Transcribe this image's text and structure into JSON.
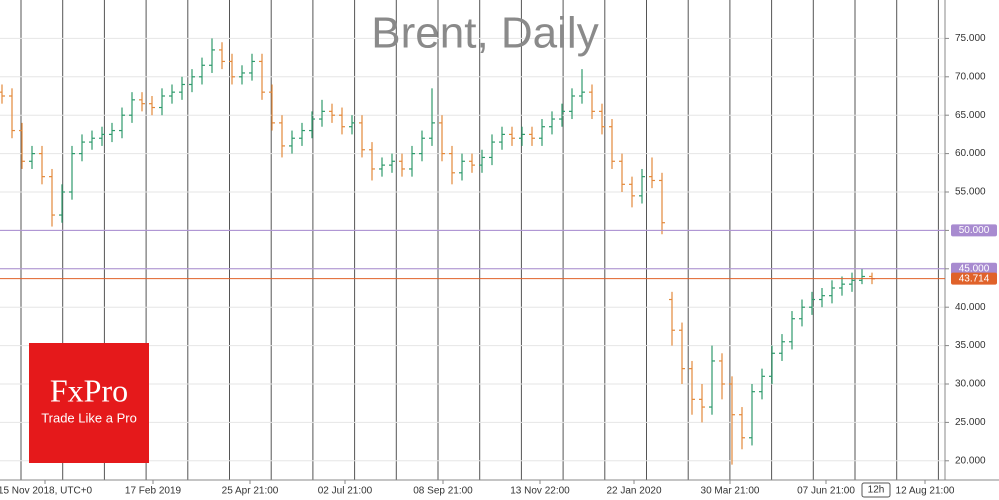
{
  "chart_data": {
    "type": "ohlc",
    "title": "Brent, Daily",
    "timeframe": "12h",
    "logo": {
      "brand": "FxPro",
      "tagline": "Trade Like a Pro"
    },
    "up_color": "#2f9a6c",
    "down_color": "#e3893a",
    "grid": true,
    "xlim": [
      -0.2,
      94.3
    ],
    "ylim": [
      17.5,
      80
    ],
    "xticks": [
      {
        "value": 4.3,
        "label": "15 Nov 2018, UTC+0"
      },
      {
        "value": 15.1,
        "label": "17 Feb 2019"
      },
      {
        "value": 24.8,
        "label": "25 Apr 21:00"
      },
      {
        "value": 34.3,
        "label": "02 Jul 21:00"
      },
      {
        "value": 44.1,
        "label": "08 Sep 21:00"
      },
      {
        "value": 53.8,
        "label": "13 Nov 22:00"
      },
      {
        "value": 63.2,
        "label": "22 Jan 2020"
      },
      {
        "value": 72.8,
        "label": "30 Mar 21:00"
      },
      {
        "value": 82.4,
        "label": "07 Jun 21:00"
      },
      {
        "value": 92.3,
        "label": "12 Aug 21:00"
      }
    ],
    "yticks": [
      {
        "value": 20,
        "label": "20.000"
      },
      {
        "value": 25,
        "label": "25.000"
      },
      {
        "value": 30,
        "label": "30.000"
      },
      {
        "value": 35,
        "label": "35.000"
      },
      {
        "value": 40,
        "label": "40.000"
      },
      {
        "value": 45,
        "label": "45.000"
      },
      {
        "value": 50,
        "label": "50.000"
      },
      {
        "value": 55,
        "label": "55.000"
      },
      {
        "value": 60,
        "label": "60.000"
      },
      {
        "value": 65,
        "label": "65.000"
      },
      {
        "value": 70,
        "label": "70.000"
      },
      {
        "value": 75,
        "label": "75.000"
      }
    ],
    "levels": [
      {
        "value": 50,
        "label": "50.000",
        "color": "#a88bd0"
      },
      {
        "value": 45,
        "label": "45.000",
        "color": "#a88bd0"
      },
      {
        "value": 43.714,
        "label": "43.714",
        "color": "#e0622a"
      }
    ],
    "open": [
      68,
      67.5,
      63,
      59,
      60,
      57,
      52,
      55,
      60,
      61.5,
      62,
      62.5,
      63,
      65,
      67,
      66.5,
      66,
      67.5,
      68,
      69,
      70,
      71.5,
      73.5,
      72,
      70,
      70.5,
      72,
      68,
      64,
      61,
      62,
      63,
      64.5,
      65.5,
      65,
      63.5,
      64,
      60.5,
      58,
      58.5,
      59,
      58,
      60,
      62,
      64,
      60,
      57.5,
      59,
      58.5,
      59.5,
      61.5,
      62.5,
      62,
      62.5,
      62,
      63.5,
      64.5,
      65.5,
      67.5,
      68,
      65.5,
      63.5,
      59,
      56,
      54.5,
      57,
      56.5,
      41,
      37,
      32,
      28,
      27,
      33,
      30,
      26,
      23,
      29,
      31,
      34,
      35.5,
      38.5,
      40,
      41,
      41.5,
      42.5,
      43,
      43.5,
      44
    ],
    "high": [
      69,
      68.5,
      64,
      61,
      61,
      58,
      56,
      61,
      62.5,
      63,
      63.5,
      64,
      66,
      68,
      68,
      67.5,
      68.5,
      69,
      70,
      71,
      72.5,
      75,
      74.5,
      73,
      71.5,
      73,
      73,
      69,
      65,
      63,
      64,
      65.5,
      67,
      66.5,
      66,
      65,
      65,
      61.5,
      59.5,
      60,
      60,
      61,
      63,
      68.5,
      65,
      61,
      60,
      60,
      60.5,
      62.5,
      63.5,
      63.5,
      63.5,
      63.5,
      64.5,
      65.5,
      66.5,
      68.5,
      71,
      69,
      66.5,
      64.5,
      60,
      57,
      58,
      59.5,
      57.5,
      42,
      38,
      33,
      30,
      35,
      34,
      31,
      27,
      30,
      32,
      35,
      36.5,
      39.5,
      41,
      42,
      42.5,
      43.5,
      44,
      44.5,
      45,
      44.5
    ],
    "low": [
      66.5,
      62,
      58,
      58,
      56,
      50.5,
      51,
      54,
      59,
      60.5,
      61,
      61.5,
      62,
      64,
      65.5,
      65,
      65,
      66.5,
      67,
      68,
      69,
      70.5,
      71,
      69,
      69,
      69.5,
      67,
      63,
      59.5,
      60,
      61,
      62,
      63.5,
      64,
      62.5,
      62.5,
      59.5,
      56.5,
      57,
      57.5,
      57,
      57,
      59,
      61,
      59,
      56,
      56.5,
      57.5,
      57.5,
      58.5,
      60.5,
      61,
      61,
      61,
      61,
      62.5,
      63.5,
      64.5,
      66.5,
      64.5,
      62.5,
      58,
      55,
      53,
      53.5,
      55.5,
      49.5,
      35,
      30,
      26,
      25,
      26,
      28,
      19.5,
      21.5,
      22,
      28,
      30,
      33,
      34.5,
      37.5,
      39,
      40,
      40.5,
      41.5,
      42,
      43,
      43
    ],
    "close": [
      67.5,
      63,
      59,
      60,
      57,
      52,
      55,
      60,
      61.5,
      62,
      62.5,
      63,
      65,
      67,
      66.5,
      66,
      67.5,
      68,
      69,
      70,
      71.5,
      73.5,
      72,
      70,
      70.5,
      72,
      68,
      64,
      61,
      62,
      63,
      64.5,
      65.5,
      65,
      63.5,
      64,
      60.5,
      58,
      58.5,
      59,
      58,
      60,
      62,
      64,
      60,
      57.5,
      59,
      58.5,
      59.5,
      61.5,
      62.5,
      62,
      62.5,
      62,
      63.5,
      64.5,
      65.5,
      67.5,
      68,
      65.5,
      63.5,
      59,
      56,
      54.5,
      57,
      56.5,
      51,
      37,
      32,
      28,
      27,
      33,
      30,
      26,
      23,
      29,
      31,
      34,
      35.5,
      38.5,
      40,
      41,
      41.5,
      42.5,
      43,
      43.5,
      44,
      43.7
    ]
  }
}
